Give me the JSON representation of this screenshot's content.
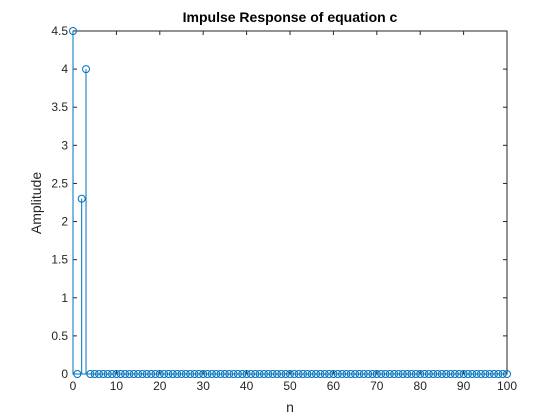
{
  "chart_data": {
    "type": "stem",
    "title": "Impulse Response of equation c",
    "xlabel": "n",
    "ylabel": "Amplitude",
    "xlim": [
      0,
      100
    ],
    "ylim": [
      0,
      4.5
    ],
    "xticks": [
      0,
      10,
      20,
      30,
      40,
      50,
      60,
      70,
      80,
      90,
      100
    ],
    "yticks": [
      0,
      0.5,
      1,
      1.5,
      2,
      2.5,
      3,
      3.5,
      4,
      4.5
    ],
    "ytick_labels": [
      "0",
      "0.5",
      "1",
      "1.5",
      "2",
      "2.5",
      "3",
      "3.5",
      "4",
      "4.5"
    ],
    "grid": false,
    "series": [
      {
        "color": "#0072BD",
        "x_start": 0,
        "x_end": 100,
        "nonzero": [
          {
            "x": 0,
            "y": 4.5
          },
          {
            "x": 2,
            "y": 2.3
          },
          {
            "x": 3,
            "y": 4.0
          }
        ],
        "default_value": 0
      }
    ]
  }
}
